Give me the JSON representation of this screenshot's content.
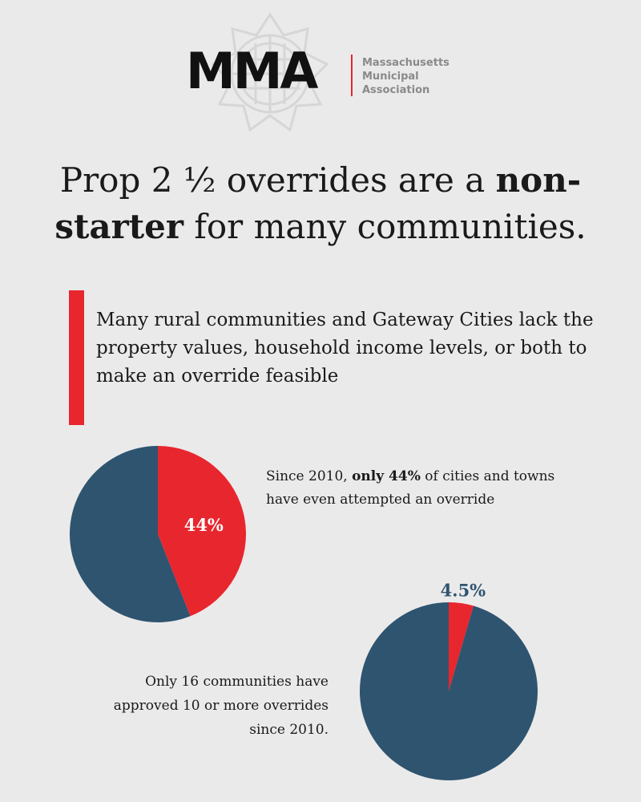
{
  "logo": {
    "mark": "MMA",
    "name_lines": [
      "Massachusetts",
      "Municipal",
      "Association"
    ],
    "accent_color": "#e8262e"
  },
  "headline": {
    "part1": "Prop 2 ½ overrides are a ",
    "bold1": "non-",
    "bold2": "starter",
    "part2": " for many communities."
  },
  "callout": {
    "text": "Many rural communities and Gateway Cities lack the property values, household income levels, or both to make an override feasible"
  },
  "note1": {
    "prefix": "Since 2010, ",
    "bold": "only 44%",
    "suffix": " of cities and towns have even attempted an override"
  },
  "note2": {
    "text": "Only 16 communities have approved 10 or more overrides since 2010."
  },
  "colors": {
    "red": "#e8262e",
    "navy": "#2e5470",
    "background": "#ebeaea"
  },
  "chart_data": [
    {
      "type": "pie",
      "title": "",
      "slices": [
        {
          "label": "44%",
          "value": 44,
          "color": "#e8262e",
          "label_position": "inside"
        },
        {
          "label": "",
          "value": 56,
          "color": "#2e5470"
        }
      ]
    },
    {
      "type": "pie",
      "title": "",
      "slices": [
        {
          "label": "4.5%",
          "value": 4.5,
          "color": "#e8262e",
          "label_position": "outside"
        },
        {
          "label": "",
          "value": 95.5,
          "color": "#2e5470"
        }
      ]
    }
  ]
}
